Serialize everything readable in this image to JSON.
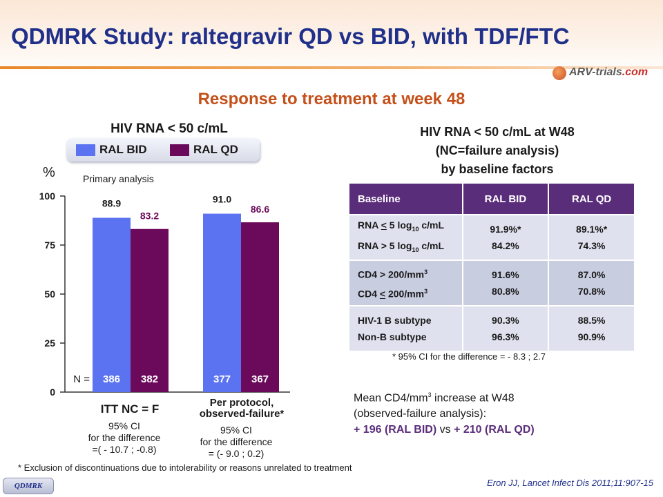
{
  "slide": {
    "title": "QDMRK Study: raltegravir QD vs BID, with TDF/FTC",
    "logo_prefix": "ARV-trials",
    "logo_suffix": ".com",
    "section_title": "Response to treatment at week 48",
    "footnote": "* Exclusion of discontinuations due to intolerability or reasons unrelated to treatment",
    "reference": "Eron JJ, Lancet Infect Dis 2011;11:907-15",
    "badge": "QDMRK"
  },
  "colors": {
    "bid": "#5b73f0",
    "qd": "#6b0a5a",
    "header": "#5a2d7a",
    "title": "#1f2f8a",
    "accent": "#c4501a"
  },
  "chart_data": {
    "type": "bar",
    "title": "HIV RNA < 50 c/mL",
    "ylabel": "%",
    "ylim": [
      0,
      100
    ],
    "yticks": [
      "0",
      "25",
      "50",
      "75",
      "100"
    ],
    "yticks_num": [
      0,
      25,
      50,
      75,
      100
    ],
    "annotation": "Primary analysis",
    "n_label": "N =",
    "legend": [
      "RAL BID",
      "RAL QD"
    ],
    "series": [
      {
        "name": "RAL BID",
        "values": [
          88.9,
          91.0
        ],
        "labels": [
          "88.9",
          "91.0"
        ],
        "n": [
          "386",
          "377"
        ]
      },
      {
        "name": "RAL QD",
        "values": [
          83.2,
          86.6
        ],
        "labels": [
          "83.2",
          "86.6"
        ],
        "n": [
          "382",
          "367"
        ]
      }
    ],
    "categories": [
      "ITT NC = F",
      "Per protocol, observed-failure*"
    ],
    "groups": [
      {
        "label_lines": [
          "ITT NC = F"
        ],
        "ci_lines": [
          "95% CI",
          "for the difference",
          "=( - 10.7 ; -0.8)"
        ]
      },
      {
        "label_lines": [
          "Per protocol,",
          "observed-failure*"
        ],
        "ci_lines": [
          "95% CI",
          "for the difference",
          "= (- 9.0 ; 0.2)"
        ]
      }
    ]
  },
  "right_panel": {
    "title_lines": [
      "HIV RNA < 50 c/mL at W48",
      "(NC=failure analysis)",
      "by baseline factors"
    ],
    "headers": [
      "Baseline",
      "RAL BID",
      "RAL QD"
    ],
    "rows": [
      {
        "lines": [
          "RNA < 5 log10 c/mL",
          "RNA > 5 log10 c/mL"
        ],
        "bid": [
          "91.9%*",
          "84.2%"
        ],
        "qd": [
          "89.1%*",
          "74.3%"
        ]
      },
      {
        "lines": [
          "CD4 > 200/mm3",
          "CD4 < 200/mm3"
        ],
        "bid": [
          "91.6%",
          "80.8%"
        ],
        "qd": [
          "87.0%",
          "70.8%"
        ]
      },
      {
        "lines": [
          "HIV-1 B subtype",
          "Non-B subtype"
        ],
        "bid": [
          "90.3%",
          "96.3%"
        ],
        "qd": [
          "88.5%",
          "90.9%"
        ]
      }
    ],
    "table_note": "* 95% CI for the difference = - 8.3 ; 2.7",
    "cd4_line1": "Mean CD4/mm3 increase at W48",
    "cd4_line2": "(observed-failure analysis):",
    "cd4_bid_value": "+ 196",
    "cd4_bid_label": "(RAL BID)",
    "cd4_vs": "vs",
    "cd4_qd_value": "+ 210",
    "cd4_qd_label": "(RAL QD)"
  }
}
